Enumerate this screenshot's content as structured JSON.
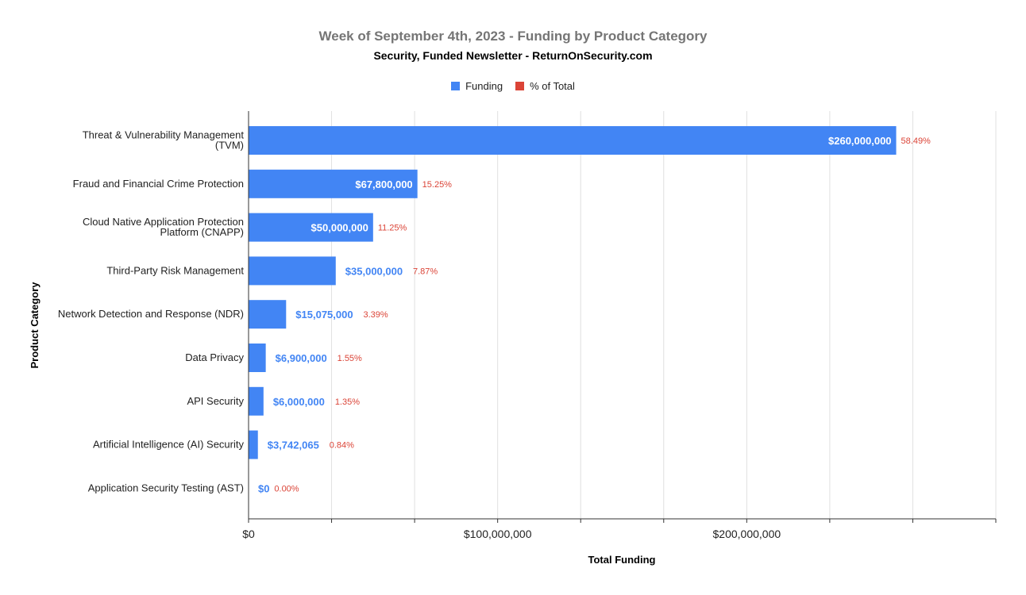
{
  "chart_data": {
    "type": "bar",
    "orientation": "horizontal",
    "title": "Week of September 4th, 2023 - Funding by Product Category",
    "subtitle": "Security, Funded Newsletter - ReturnOnSecurity.com",
    "xlabel": "Total Funding",
    "ylabel": "Product Category",
    "xlim": [
      0,
      300000000
    ],
    "xticks": [
      "$0",
      "$100,000,000",
      "$200,000,000"
    ],
    "xtick_values": [
      0,
      100000000,
      200000000
    ],
    "grid": true,
    "legend_position": "top",
    "categories": [
      "Threat & Vulnerability Management (TVM)",
      "Fraud and Financial Crime Protection",
      "Cloud Native Application Protection Platform (CNAPP)",
      "Third-Party Risk Management",
      "Network Detection and Response (NDR)",
      "Data Privacy",
      "API Security",
      "Artificial Intelligence (AI) Security",
      "Application Security Testing (AST)"
    ],
    "category_lines": [
      [
        "Threat & Vulnerability Management",
        "(TVM)"
      ],
      [
        "Fraud and Financial Crime Protection"
      ],
      [
        "Cloud Native Application Protection",
        "Platform (CNAPP)"
      ],
      [
        "Third-Party Risk Management"
      ],
      [
        "Network Detection and Response (NDR)"
      ],
      [
        "Data Privacy"
      ],
      [
        "API Security"
      ],
      [
        "Artificial Intelligence (AI) Security"
      ],
      [
        "Application Security Testing (AST)"
      ]
    ],
    "series": [
      {
        "name": "Funding",
        "color": "#4285f4",
        "values": [
          260000000,
          67800000,
          50000000,
          35000000,
          15075000,
          6900000,
          6000000,
          3742065,
          0
        ],
        "labels": [
          "$260,000,000",
          "$67,800,000",
          "$50,000,000",
          "$35,000,000",
          "$15,075,000",
          "$6,900,000",
          "$6,000,000",
          "$3,742,065",
          "$0"
        ]
      },
      {
        "name": "% of Total",
        "color": "#db4437",
        "values": [
          58.49,
          15.25,
          11.25,
          7.87,
          3.39,
          1.55,
          1.35,
          0.84,
          0.0
        ],
        "labels": [
          "58.49%",
          "15.25%",
          "11.25%",
          "7.87%",
          "3.39%",
          "1.55%",
          "1.35%",
          "0.84%",
          "0.00%"
        ]
      }
    ]
  }
}
